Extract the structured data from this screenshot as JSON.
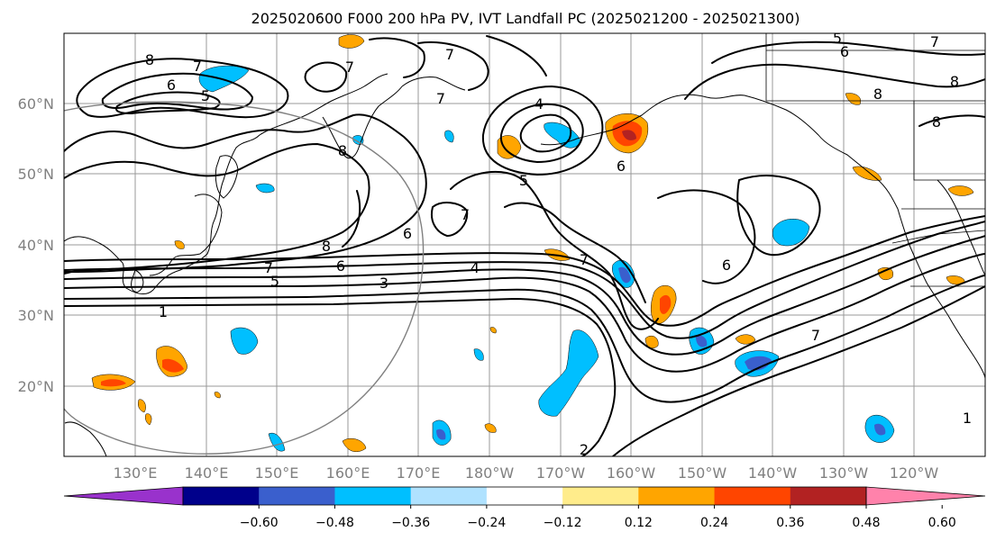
{
  "title": "2025020600 F000 200 hPa PV, IVT Landfall PC (2025021200 - 2025021300)",
  "map": {
    "lon_labels": [
      "130°E",
      "140°E",
      "150°E",
      "160°E",
      "170°E",
      "180°W",
      "170°W",
      "160°W",
      "150°W",
      "140°W",
      "130°W",
      "120°W"
    ],
    "lat_labels": [
      "60°N",
      "50°N",
      "40°N",
      "30°N",
      "20°N"
    ],
    "contour_labels": {
      "c8_nw": "8",
      "c7_nw": "7",
      "c6_nw": "6",
      "c5_nw": "5",
      "c8_mid": "8",
      "c7_mid": "7",
      "c6_mid": "6",
      "c5_mid": "5",
      "c3_mid": "3",
      "c4_mid": "4",
      "c1_w": "1",
      "c8_kam": "8",
      "c7_a": "7",
      "c7_b": "7",
      "c7_c": "7",
      "c4_low": "4",
      "c5_low": "5",
      "c6_low": "6",
      "c6_east": "6",
      "c7_e": "7",
      "c1_e": "1",
      "c2_s": "2",
      "c5_ne": "5",
      "c6_ne": "6",
      "c7_ne": "7",
      "c8_ne": "8",
      "c8_ak": "8",
      "c6_ak": "6",
      "c8_hi": "8",
      "c7_low2": "7",
      "c7_sw": "7"
    },
    "boundary_circle": "ring at the west edge of the map"
  },
  "colorbar": {
    "ticks": [
      "−0.60",
      "−0.48",
      "−0.36",
      "−0.24",
      "−0.12",
      "0.12",
      "0.24",
      "0.36",
      "0.48",
      "0.60"
    ],
    "colors": [
      "#9932cc",
      "#00008b",
      "#3a5fcd",
      "#00bfff",
      "#b0e2ff",
      "#ffffff",
      "#ffec8b",
      "#ffa500",
      "#ff4500",
      "#b22222",
      "#ff82ab"
    ],
    "extend": "both"
  },
  "colors": {
    "contour": "#000000",
    "grid": "#999999",
    "tick_text": "#808080"
  }
}
